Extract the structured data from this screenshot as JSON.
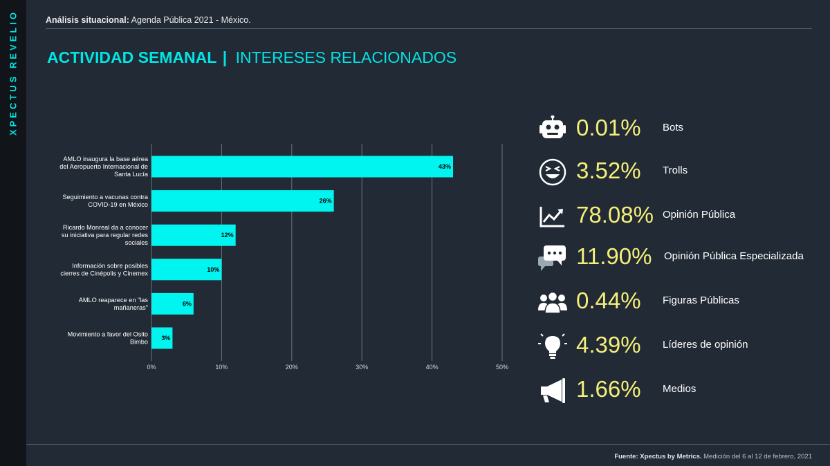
{
  "brand": "XPECTUS REVELIO",
  "header": {
    "label": "Análisis situacional:",
    "text": "Agenda Pública 2021 - México."
  },
  "title": {
    "main": "ACTIVIDAD SEMANAL",
    "separator": "|",
    "sub": "INTERESES RELACIONADOS"
  },
  "chart_data": {
    "type": "bar",
    "orientation": "horizontal",
    "categories": [
      [
        "AMLO inaugura la base aérea",
        "del Aeropuerto Internacional de",
        "Santa Lucía"
      ],
      [
        "Seguimiento a vacunas contra",
        "COVID-19 en México"
      ],
      [
        "Ricardo Monreal da a conocer",
        "su iniciativa para regular redes",
        "sociales"
      ],
      [
        "Información sobre posibles",
        "cierres de Cinépolis y Cinemex"
      ],
      [
        "AMLO reaparece en \"las",
        "mañaneras\""
      ],
      [
        "Movimiento a favor del Osito",
        "Bimbo"
      ]
    ],
    "values": [
      43,
      26,
      12,
      10,
      6,
      3
    ],
    "data_labels": [
      "43%",
      "26%",
      "12%",
      "10%",
      "6%",
      "3%"
    ],
    "xlim": [
      0,
      50
    ],
    "xticks": [
      "0%",
      "10%",
      "20%",
      "30%",
      "40%",
      "50%"
    ],
    "grid": true,
    "bar_color": "#00f5f0"
  },
  "stats": [
    {
      "icon": "robot-icon",
      "value": "0.01%",
      "label": "Bots"
    },
    {
      "icon": "laughing-face-icon",
      "value": "3.52%",
      "label": "Trolls"
    },
    {
      "icon": "trend-chart-icon",
      "value": "78.08%",
      "label": "Opinión Pública"
    },
    {
      "icon": "chat-bubbles-icon",
      "value": "11.90%",
      "label": "Opinión Pública Especializada"
    },
    {
      "icon": "group-people-icon",
      "value": "0.44%",
      "label": "Figuras Públicas"
    },
    {
      "icon": "lightbulb-icon",
      "value": "4.39%",
      "label": "Líderes de opinión"
    },
    {
      "icon": "megaphone-icon",
      "value": "1.66%",
      "label": "Medios"
    }
  ],
  "footer": {
    "source_label": "Fuente: Xpectus by Metrics.",
    "text": "Medición del 6 al 12 de febrero, 2021"
  },
  "colors": {
    "accent": "#00e5e5",
    "stat_value": "#f5ef7a",
    "background": "#222a35"
  }
}
